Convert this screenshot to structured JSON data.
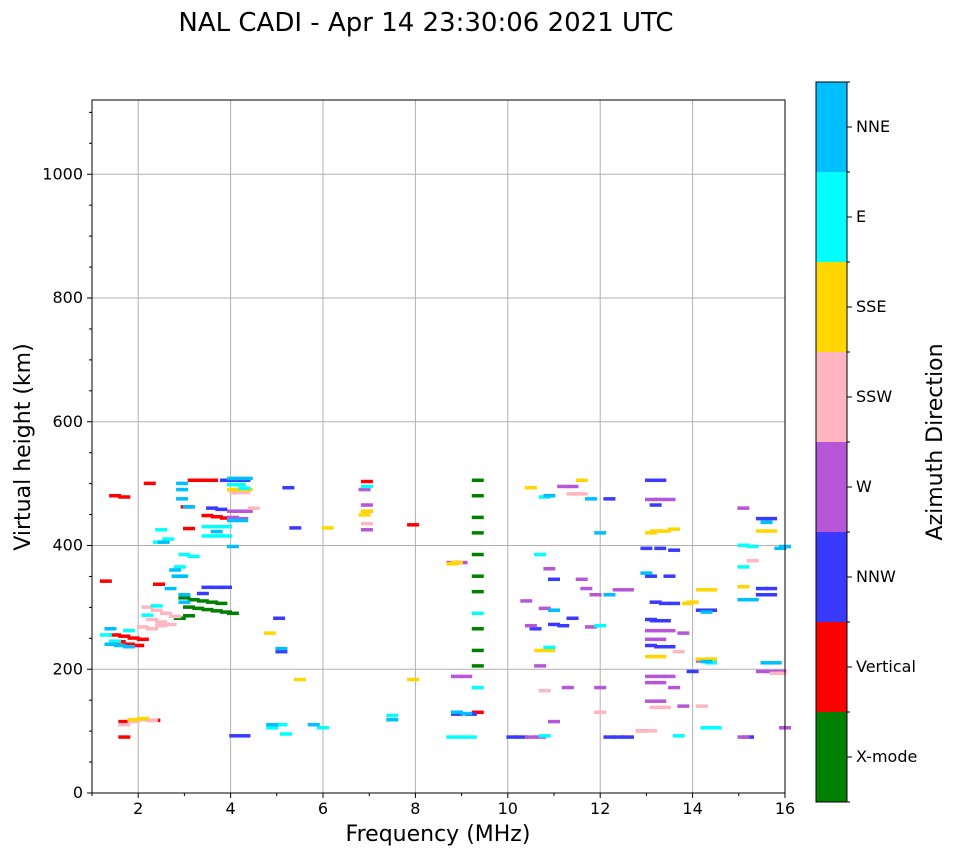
{
  "chart_data": {
    "type": "scatter",
    "title": "NAL CADI - Apr 14 23:30:06 2021 UTC",
    "xlabel": "Frequency (MHz)",
    "ylabel": "Virtual height (km)",
    "xlim": [
      1,
      16
    ],
    "ylim": [
      0,
      1120
    ],
    "x_ticks": [
      2,
      4,
      6,
      8,
      10,
      12,
      14,
      16
    ],
    "y_ticks": [
      0,
      200,
      400,
      600,
      800,
      1000
    ],
    "grid": true,
    "colorbar": {
      "label": "Azimuth Direction",
      "categories": [
        "X-mode",
        "Vertical",
        "NNW",
        "W",
        "SSW",
        "SSE",
        "E",
        "NNE"
      ],
      "colors": [
        "#008000",
        "#ff0000",
        "#3a3aff",
        "#b657d8",
        "#ffb6c1",
        "#ffd700",
        "#00ffff",
        "#00bfff"
      ]
    },
    "series": [
      {
        "name": "X-mode",
        "points": [
          [
            3.0,
            315
          ],
          [
            3.2,
            312
          ],
          [
            3.4,
            310
          ],
          [
            3.6,
            308
          ],
          [
            3.8,
            306
          ],
          [
            3.1,
            300
          ],
          [
            3.3,
            298
          ],
          [
            3.5,
            296
          ],
          [
            3.7,
            294
          ],
          [
            3.9,
            292
          ],
          [
            2.9,
            282
          ],
          [
            3.1,
            286
          ],
          [
            9.35,
            505
          ],
          [
            9.35,
            480
          ],
          [
            9.35,
            445
          ],
          [
            9.35,
            420
          ],
          [
            9.35,
            385
          ],
          [
            9.35,
            350
          ],
          [
            9.35,
            325
          ],
          [
            9.35,
            265
          ],
          [
            9.35,
            230
          ],
          [
            9.35,
            205
          ],
          [
            4.05,
            290
          ]
        ]
      },
      {
        "name": "Vertical",
        "points": [
          [
            1.5,
            480
          ],
          [
            1.7,
            478
          ],
          [
            1.3,
            342
          ],
          [
            1.5,
            255
          ],
          [
            1.7,
            253
          ],
          [
            1.9,
            250
          ],
          [
            2.1,
            248
          ],
          [
            1.6,
            244
          ],
          [
            1.8,
            240
          ],
          [
            2.0,
            238
          ],
          [
            1.7,
            115
          ],
          [
            2.35,
            117
          ],
          [
            1.7,
            90
          ],
          [
            3.2,
            505
          ],
          [
            3.4,
            505
          ],
          [
            3.6,
            505
          ],
          [
            3.5,
            448
          ],
          [
            3.7,
            446
          ],
          [
            3.9,
            444
          ],
          [
            3.1,
            427
          ],
          [
            3.05,
            462
          ],
          [
            6.95,
            503
          ],
          [
            6.95,
            455
          ],
          [
            7.95,
            433
          ],
          [
            9.35,
            130
          ],
          [
            2.25,
            500
          ],
          [
            2.45,
            337
          ]
        ]
      },
      {
        "name": "NNW",
        "points": [
          [
            3.9,
            505
          ],
          [
            4.1,
            505
          ],
          [
            4.3,
            505
          ],
          [
            3.6,
            460
          ],
          [
            3.8,
            458
          ],
          [
            3.5,
            332
          ],
          [
            3.7,
            332
          ],
          [
            3.9,
            332
          ],
          [
            3.4,
            322
          ],
          [
            5.05,
            282
          ],
          [
            5.1,
            228
          ],
          [
            5.4,
            428
          ],
          [
            5.25,
            493
          ],
          [
            8.9,
            130
          ],
          [
            8.9,
            127
          ],
          [
            9.2,
            127
          ],
          [
            13.1,
            505
          ],
          [
            13.3,
            505
          ],
          [
            13.5,
            350
          ],
          [
            13.1,
            350
          ],
          [
            13.2,
            308
          ],
          [
            13.4,
            306
          ],
          [
            13.6,
            306
          ],
          [
            13.1,
            280
          ],
          [
            13.2,
            278
          ],
          [
            13.4,
            278
          ],
          [
            13.1,
            238
          ],
          [
            13.3,
            236
          ],
          [
            13.5,
            236
          ],
          [
            12.6,
            90
          ],
          [
            12.4,
            90
          ],
          [
            12.2,
            90
          ],
          [
            10.1,
            90
          ],
          [
            10.3,
            90
          ],
          [
            11.0,
            272
          ],
          [
            11.2,
            270
          ],
          [
            11.4,
            282
          ],
          [
            10.6,
            265
          ],
          [
            11.0,
            345
          ],
          [
            15.5,
            330
          ],
          [
            15.7,
            330
          ],
          [
            15.5,
            320
          ],
          [
            15.7,
            320
          ],
          [
            14.2,
            295
          ],
          [
            14.4,
            295
          ],
          [
            15.5,
            443
          ],
          [
            15.7,
            443
          ],
          [
            4.1,
            92
          ],
          [
            4.3,
            92
          ],
          [
            12.2,
            475
          ],
          [
            13.2,
            465
          ],
          [
            13.3,
            395
          ],
          [
            13.0,
            395
          ],
          [
            13.6,
            392
          ],
          [
            14.0,
            196
          ],
          [
            15.2,
            90
          ]
        ]
      },
      {
        "name": "W",
        "points": [
          [
            4.05,
            455
          ],
          [
            4.2,
            455
          ],
          [
            4.35,
            455
          ],
          [
            4.05,
            445
          ],
          [
            4.25,
            443
          ],
          [
            6.95,
            465
          ],
          [
            6.95,
            425
          ],
          [
            6.9,
            490
          ],
          [
            8.8,
            372
          ],
          [
            9.0,
            372
          ],
          [
            8.9,
            188
          ],
          [
            9.1,
            188
          ],
          [
            10.4,
            310
          ],
          [
            10.8,
            298
          ],
          [
            11.6,
            345
          ],
          [
            11.7,
            330
          ],
          [
            11.9,
            320
          ],
          [
            12.4,
            328
          ],
          [
            12.6,
            328
          ],
          [
            13.1,
            474
          ],
          [
            13.3,
            474
          ],
          [
            13.5,
            474
          ],
          [
            13.1,
            262
          ],
          [
            13.3,
            262
          ],
          [
            13.5,
            262
          ],
          [
            13.1,
            248
          ],
          [
            13.3,
            248
          ],
          [
            13.1,
            188
          ],
          [
            13.3,
            188
          ],
          [
            13.5,
            188
          ],
          [
            13.1,
            178
          ],
          [
            13.3,
            178
          ],
          [
            13.1,
            148
          ],
          [
            13.3,
            148
          ],
          [
            15.1,
            460
          ],
          [
            15.5,
            196
          ],
          [
            15.7,
            196
          ],
          [
            15.9,
            196
          ],
          [
            14.2,
            213
          ],
          [
            14.4,
            213
          ],
          [
            11.0,
            115
          ],
          [
            11.2,
            495
          ],
          [
            11.4,
            495
          ],
          [
            13.8,
            258
          ],
          [
            13.6,
            170
          ],
          [
            13.8,
            140
          ],
          [
            10.5,
            90
          ],
          [
            10.7,
            90
          ],
          [
            11.8,
            268
          ],
          [
            12.0,
            170
          ],
          [
            11.3,
            170
          ],
          [
            10.7,
            205
          ],
          [
            10.9,
            362
          ],
          [
            10.5,
            270
          ],
          [
            12.9,
            100
          ],
          [
            15.1,
            90
          ],
          [
            16.0,
            105
          ]
        ]
      },
      {
        "name": "SSW",
        "points": [
          [
            2.2,
            300
          ],
          [
            2.4,
            295
          ],
          [
            2.6,
            290
          ],
          [
            2.8,
            285
          ],
          [
            2.3,
            280
          ],
          [
            2.5,
            276
          ],
          [
            2.7,
            272
          ],
          [
            2.1,
            268
          ],
          [
            2.3,
            265
          ],
          [
            2.5,
            270
          ],
          [
            1.9,
            115
          ],
          [
            2.1,
            118
          ],
          [
            2.3,
            117
          ],
          [
            1.7,
            110
          ],
          [
            4.1,
            485
          ],
          [
            4.3,
            485
          ],
          [
            4.5,
            460
          ],
          [
            13.4,
            138
          ],
          [
            13.2,
            138
          ],
          [
            12.9,
            100
          ],
          [
            13.1,
            100
          ],
          [
            13.7,
            228
          ],
          [
            15.3,
            375
          ],
          [
            14.2,
            140
          ],
          [
            11.4,
            483
          ],
          [
            11.6,
            483
          ],
          [
            15.8,
            193
          ],
          [
            15.9,
            193
          ],
          [
            10.8,
            165
          ],
          [
            12.0,
            130
          ],
          [
            6.95,
            435
          ]
        ]
      },
      {
        "name": "SSE",
        "points": [
          [
            4.05,
            490
          ],
          [
            4.2,
            490
          ],
          [
            4.35,
            490
          ],
          [
            6.95,
            455
          ],
          [
            6.9,
            449
          ],
          [
            8.9,
            372
          ],
          [
            8.8,
            370
          ],
          [
            10.5,
            493
          ],
          [
            11.6,
            505
          ],
          [
            13.2,
            423
          ],
          [
            13.4,
            423
          ],
          [
            13.6,
            426
          ],
          [
            13.1,
            420
          ],
          [
            13.1,
            220
          ],
          [
            13.3,
            220
          ],
          [
            14.2,
            328
          ],
          [
            14.4,
            328
          ],
          [
            14.0,
            308
          ],
          [
            13.9,
            306
          ],
          [
            15.1,
            333
          ],
          [
            15.5,
            423
          ],
          [
            15.7,
            423
          ],
          [
            14.2,
            216
          ],
          [
            14.4,
            216
          ],
          [
            10.7,
            230
          ],
          [
            10.9,
            230
          ],
          [
            5.5,
            183
          ],
          [
            6.1,
            428
          ],
          [
            1.9,
            118
          ],
          [
            2.1,
            120
          ],
          [
            7.95,
            183
          ],
          [
            4.85,
            258
          ]
        ]
      },
      {
        "name": "E",
        "points": [
          [
            3.0,
            385
          ],
          [
            3.2,
            382
          ],
          [
            2.45,
            405
          ],
          [
            2.65,
            410
          ],
          [
            2.5,
            425
          ],
          [
            2.9,
            365
          ],
          [
            2.9,
            350
          ],
          [
            3.5,
            415
          ],
          [
            3.7,
            415
          ],
          [
            3.9,
            415
          ],
          [
            3.5,
            430
          ],
          [
            3.7,
            430
          ],
          [
            3.9,
            430
          ],
          [
            4.05,
            498
          ],
          [
            4.2,
            498
          ],
          [
            4.3,
            492
          ],
          [
            8.8,
            90
          ],
          [
            9.0,
            90
          ],
          [
            9.2,
            90
          ],
          [
            9.35,
            170
          ],
          [
            9.35,
            290
          ],
          [
            10.8,
            92
          ],
          [
            10.9,
            235
          ],
          [
            10.7,
            385
          ],
          [
            10.8,
            478
          ],
          [
            12.0,
            270
          ],
          [
            13.7,
            92
          ],
          [
            14.3,
            105
          ],
          [
            14.5,
            105
          ],
          [
            15.1,
            400
          ],
          [
            15.3,
            398
          ],
          [
            15.1,
            365
          ],
          [
            14.4,
            210
          ],
          [
            1.3,
            255
          ],
          [
            1.5,
            245
          ],
          [
            1.8,
            262
          ],
          [
            2.2,
            287
          ],
          [
            2.4,
            302
          ],
          [
            4.9,
            105
          ],
          [
            5.2,
            95
          ],
          [
            5.1,
            110
          ],
          [
            6.0,
            105
          ],
          [
            7.5,
            125
          ],
          [
            6.95,
            495
          ]
        ]
      },
      {
        "name": "NNE",
        "points": [
          [
            2.95,
            500
          ],
          [
            2.95,
            490
          ],
          [
            2.95,
            475
          ],
          [
            3.1,
            462
          ],
          [
            2.8,
            360
          ],
          [
            2.85,
            350
          ],
          [
            2.7,
            330
          ],
          [
            3.0,
            320
          ],
          [
            3.0,
            308
          ],
          [
            1.4,
            240
          ],
          [
            1.6,
            238
          ],
          [
            1.8,
            236
          ],
          [
            4.05,
            508
          ],
          [
            4.2,
            508
          ],
          [
            4.35,
            508
          ],
          [
            3.7,
            422
          ],
          [
            4.05,
            440
          ],
          [
            4.25,
            440
          ],
          [
            4.05,
            398
          ],
          [
            8.9,
            130
          ],
          [
            9.1,
            128
          ],
          [
            12.0,
            420
          ],
          [
            12.2,
            320
          ],
          [
            13.0,
            355
          ],
          [
            15.1,
            312
          ],
          [
            15.3,
            312
          ],
          [
            15.6,
            437
          ],
          [
            15.8,
            210
          ],
          [
            15.6,
            210
          ],
          [
            16.0,
            398
          ],
          [
            15.9,
            395
          ],
          [
            14.3,
            292
          ],
          [
            14.3,
            212
          ],
          [
            11.0,
            295
          ],
          [
            10.9,
            480
          ],
          [
            11.8,
            475
          ],
          [
            2.55,
            405
          ],
          [
            2.95,
            350
          ],
          [
            1.4,
            265
          ],
          [
            5.1,
            233
          ],
          [
            4.9,
            110
          ],
          [
            5.8,
            110
          ],
          [
            7.5,
            118
          ]
        ]
      }
    ]
  }
}
